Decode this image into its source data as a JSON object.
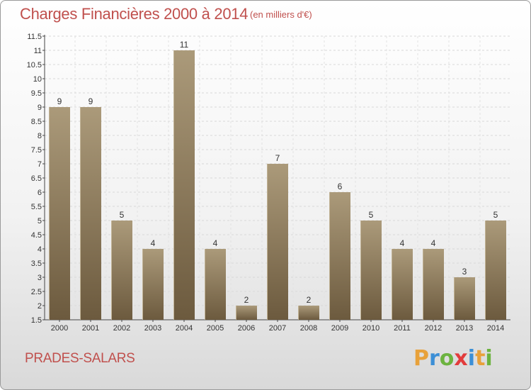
{
  "header": {
    "title": "Charges Financières 2000 à 2014",
    "unit": "(en milliers d'€)"
  },
  "footer": {
    "commune": "PRADES-SALARS",
    "logo": "Proxiti",
    "logo_colors": [
      "#e8a13a",
      "#3c8fd6",
      "#6cb33f",
      "#e23c3c",
      "#3c8fd6",
      "#e8a13a",
      "#6cb33f"
    ]
  },
  "colors": {
    "title": "#c0504d",
    "bar_light": "#a99878",
    "bar_dark": "#6e5c40"
  },
  "chart_data": {
    "type": "bar",
    "categories": [
      "2000",
      "2001",
      "2002",
      "2003",
      "2004",
      "2005",
      "2006",
      "2007",
      "2008",
      "2009",
      "2010",
      "2011",
      "2012",
      "2013",
      "2014"
    ],
    "values": [
      9,
      9,
      5,
      4,
      11,
      4,
      2,
      7,
      2,
      6,
      5,
      4,
      4,
      3,
      5
    ],
    "title": "Charges Financières 2000 à 2014",
    "ylim": [
      1.5,
      11.5
    ],
    "yticks": [
      "1.5",
      "2",
      "2.5",
      "3",
      "3.5",
      "4",
      "4.5",
      "5",
      "5.5",
      "6",
      "6.5",
      "7",
      "7.5",
      "8",
      "8.5",
      "9",
      "9.5",
      "10",
      "10.5",
      "11",
      "11.5"
    ],
    "grid": true
  }
}
